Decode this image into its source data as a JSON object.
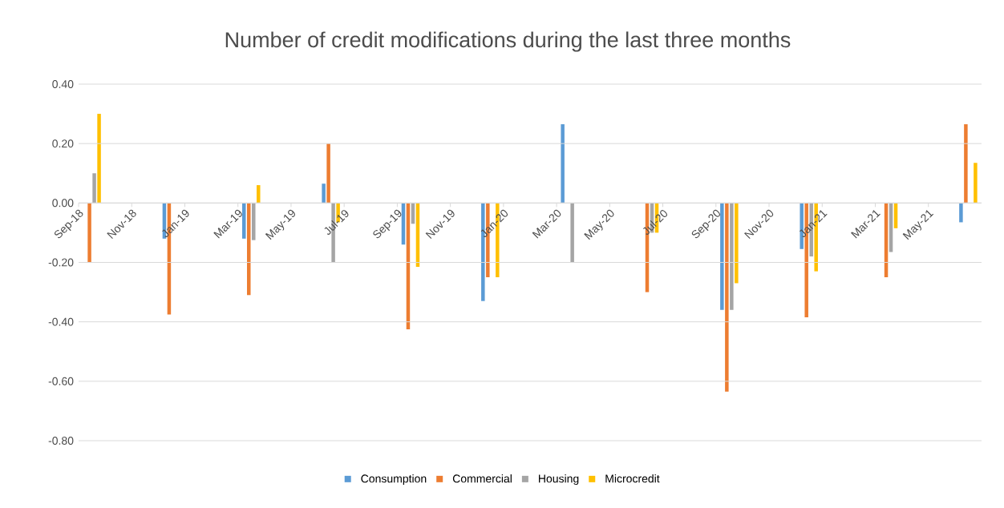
{
  "chart_data": {
    "type": "bar",
    "title": "Number of credit modifications during the last three months",
    "x": [
      "2018-09",
      "2018-12",
      "2019-03",
      "2019-06",
      "2019-09",
      "2019-12",
      "2020-03",
      "2020-06",
      "2020-09",
      "2020-12",
      "2021-03",
      "2021-06"
    ],
    "series": [
      {
        "name": "Consumption",
        "color": "#5b9bd5",
        "values": [
          null,
          -0.12,
          -0.12,
          0.065,
          -0.14,
          -0.33,
          0.265,
          null,
          -0.36,
          -0.155,
          null,
          -0.065
        ]
      },
      {
        "name": "Commercial",
        "color": "#ed7d31",
        "values": [
          -0.2,
          -0.375,
          -0.31,
          0.2,
          -0.425,
          -0.25,
          null,
          -0.3,
          -0.635,
          -0.385,
          -0.25,
          0.265
        ]
      },
      {
        "name": "Housing",
        "color": "#a5a5a5",
        "values": [
          0.1,
          null,
          -0.125,
          -0.2,
          -0.07,
          null,
          -0.2,
          -0.1,
          -0.36,
          -0.18,
          -0.165,
          null
        ]
      },
      {
        "name": "Microcredit",
        "color": "#ffc000",
        "values": [
          0.3,
          null,
          0.06,
          -0.065,
          -0.215,
          -0.25,
          null,
          -0.1,
          -0.27,
          -0.23,
          -0.085,
          0.135
        ]
      }
    ],
    "xlim": [
      "2018-09",
      "2021-07"
    ],
    "xticks": [
      {
        "value": "2018-09",
        "label": "Sep-18"
      },
      {
        "value": "2018-11",
        "label": "Nov-18"
      },
      {
        "value": "2019-01",
        "label": "Jan-19"
      },
      {
        "value": "2019-03",
        "label": "Mar-19"
      },
      {
        "value": "2019-05",
        "label": "May-19"
      },
      {
        "value": "2019-07",
        "label": "Jul-19"
      },
      {
        "value": "2019-09",
        "label": "Sep-19"
      },
      {
        "value": "2019-11",
        "label": "Nov-19"
      },
      {
        "value": "2020-01",
        "label": "Jan-20"
      },
      {
        "value": "2020-03",
        "label": "Mar-20"
      },
      {
        "value": "2020-05",
        "label": "May-20"
      },
      {
        "value": "2020-07",
        "label": "Jul-20"
      },
      {
        "value": "2020-09",
        "label": "Sep-20"
      },
      {
        "value": "2020-11",
        "label": "Nov-20"
      },
      {
        "value": "2021-01",
        "label": "Jan-21"
      },
      {
        "value": "2021-03",
        "label": "Mar-21"
      },
      {
        "value": "2021-05",
        "label": "May-21"
      }
    ],
    "ylim": [
      -0.8,
      0.4
    ],
    "yticks": [
      {
        "value": -0.8,
        "label": "-0.80"
      },
      {
        "value": -0.6,
        "label": "-0.60"
      },
      {
        "value": -0.4,
        "label": "-0.40"
      },
      {
        "value": -0.2,
        "label": "-0.20"
      },
      {
        "value": 0,
        "label": "0.00"
      },
      {
        "value": 0.2,
        "label": "0.20"
      },
      {
        "value": 0.4,
        "label": "0.40"
      }
    ],
    "grid": "y",
    "legend": "bottom"
  }
}
